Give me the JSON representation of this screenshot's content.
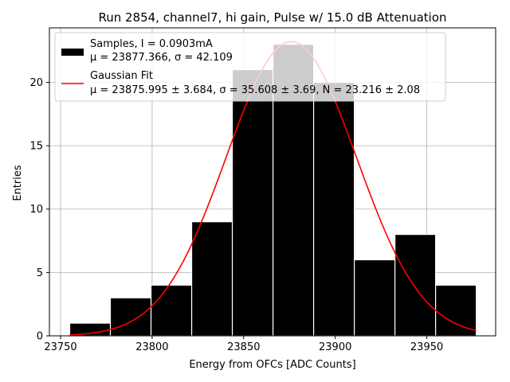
{
  "chart_data": {
    "type": "bar",
    "title": "Run 2854, channel7, hi gain, Pulse w/ 15.0 dB Attenuation",
    "xlabel": "Energy from OFCs [ADC Counts]",
    "ylabel": "Entries",
    "xlim": [
      23743.9,
      23987.6
    ],
    "ylim": [
      0,
      24.3
    ],
    "grid": true,
    "legend_position": "upper-left",
    "x_ticks": [
      23750,
      23800,
      23850,
      23900,
      23950
    ],
    "y_ticks": [
      0,
      5,
      10,
      15,
      20
    ],
    "bin_edges": [
      23755.0,
      23777.2,
      23799.4,
      23821.6,
      23843.8,
      23866.0,
      23888.2,
      23910.4,
      23932.6,
      23954.8,
      23977.0
    ],
    "counts": [
      1,
      3,
      4,
      9,
      21,
      23,
      20,
      6,
      8,
      4
    ],
    "fit": {
      "mu": 23875.995,
      "sigma": 35.608,
      "N": 23.216,
      "x_range": [
        23755,
        23977
      ]
    },
    "colors": {
      "bars": "#000000",
      "bar_edge": "#ffffff",
      "fit": "#ff0000",
      "grid": "#b0b0b0"
    },
    "legend": [
      {
        "kind": "patch",
        "line1": "Samples, I = 0.0903mA",
        "line2": "μ = 23877.366, σ = 42.109"
      },
      {
        "kind": "line",
        "line1": "Gaussian Fit",
        "line2": "μ = 23875.995 ± 3.684, σ = 35.608 ± 3.69, N = 23.216 ± 2.08"
      }
    ]
  }
}
